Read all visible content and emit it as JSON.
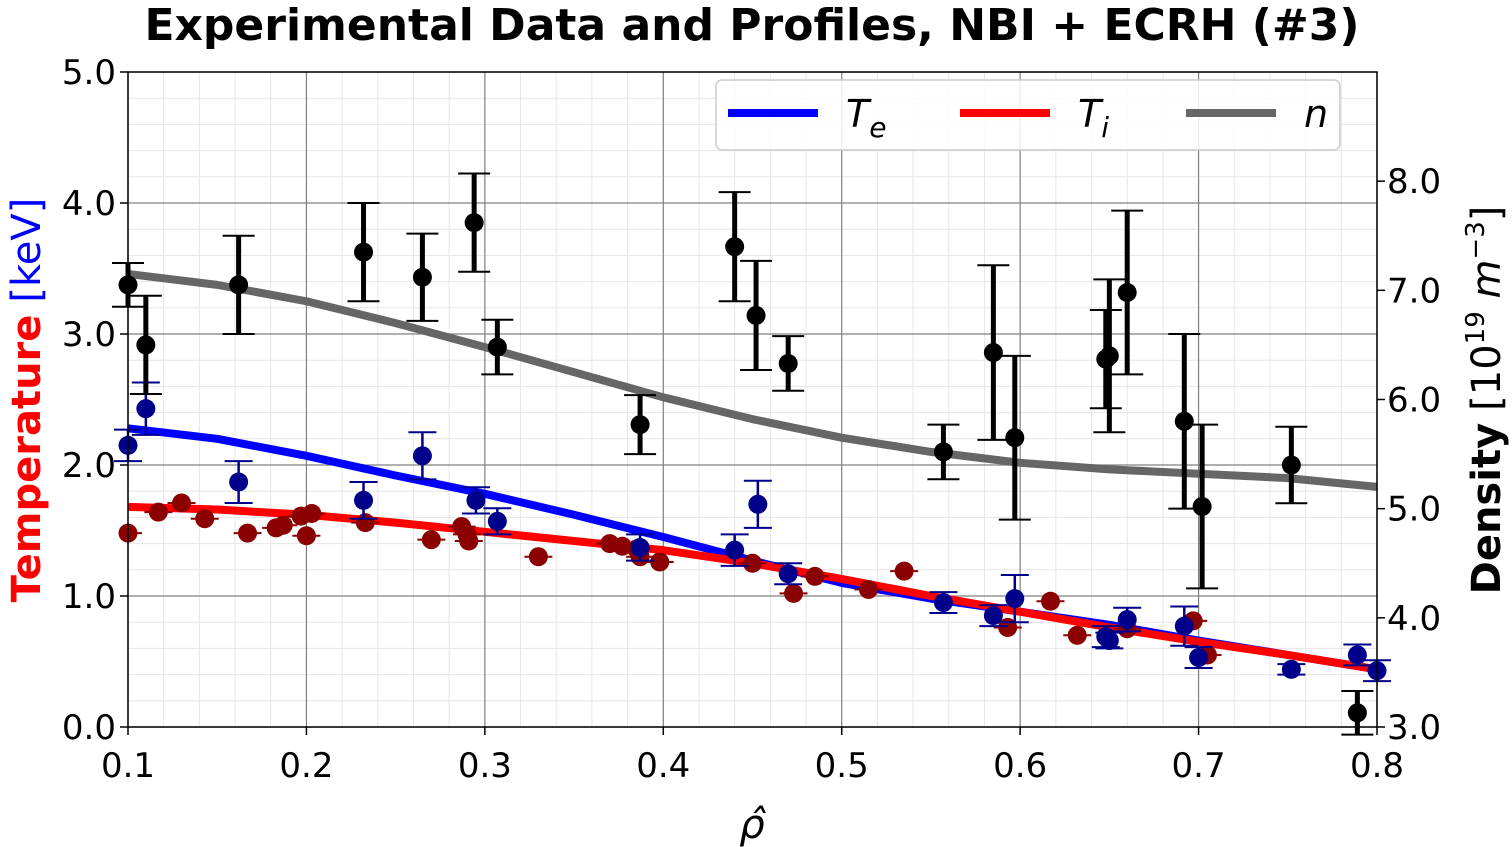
{
  "chart_data": {
    "type": "scatter",
    "title": "Experimental Data and Profiles, NBI + ECRH (#3)",
    "xlabel": "ρ̂",
    "ylabel_left": {
      "main": "Temperature",
      "unit": "[keV]"
    },
    "ylabel_right": {
      "main": "Density",
      "unit_prefix": "[10",
      "unit_exp": "19",
      "unit_mid": " m",
      "unit_exp2": "−3",
      "unit_suffix": "]"
    },
    "xlim": [
      0.1,
      0.8
    ],
    "ylim_left": [
      0.0,
      5.0
    ],
    "ylim_right": [
      3.0,
      9.0
    ],
    "x_ticks": [
      "0.1",
      "0.2",
      "0.3",
      "0.4",
      "0.5",
      "0.6",
      "0.7",
      "0.8"
    ],
    "y_left_ticks": [
      "0.0",
      "1.0",
      "2.0",
      "3.0",
      "4.0",
      "5.0"
    ],
    "y_right_ticks": [
      "3.0",
      "4.0",
      "5.0",
      "6.0",
      "7.0",
      "8.0"
    ],
    "grid": true,
    "legend_position": "top-right",
    "colors": {
      "Te": "#0000ff",
      "Ti": "#ff0000",
      "n": "#666666",
      "Te_points": "#00008b",
      "Ti_points": "#8b0000",
      "n_points": "#000000",
      "left_axis_main": "#ff0000",
      "left_axis_unit": "#0000ff"
    },
    "series": [
      {
        "name": "T_e",
        "kind": "profile",
        "axis": "left",
        "x": [
          0.1,
          0.15,
          0.2,
          0.25,
          0.3,
          0.35,
          0.4,
          0.45,
          0.5,
          0.55,
          0.6,
          0.65,
          0.7,
          0.75,
          0.8
        ],
        "y": [
          2.28,
          2.2,
          2.07,
          1.92,
          1.78,
          1.62,
          1.45,
          1.27,
          1.1,
          0.98,
          0.88,
          0.78,
          0.66,
          0.55,
          0.44
        ]
      },
      {
        "name": "T_i",
        "kind": "profile",
        "axis": "left",
        "x": [
          0.1,
          0.15,
          0.2,
          0.25,
          0.3,
          0.35,
          0.4,
          0.45,
          0.5,
          0.55,
          0.6,
          0.65,
          0.7,
          0.75,
          0.8
        ],
        "y": [
          1.68,
          1.66,
          1.62,
          1.56,
          1.49,
          1.42,
          1.35,
          1.25,
          1.13,
          1.0,
          0.88,
          0.76,
          0.65,
          0.55,
          0.44
        ]
      },
      {
        "name": "n",
        "kind": "profile",
        "axis": "right",
        "x": [
          0.1,
          0.15,
          0.2,
          0.25,
          0.3,
          0.35,
          0.4,
          0.45,
          0.5,
          0.55,
          0.6,
          0.65,
          0.7,
          0.75,
          0.8
        ],
        "y": [
          7.15,
          7.05,
          6.9,
          6.7,
          6.48,
          6.25,
          6.02,
          5.82,
          5.65,
          5.52,
          5.42,
          5.36,
          5.32,
          5.28,
          5.2
        ]
      }
    ],
    "measurements": {
      "Te": [
        {
          "x": 0.1,
          "y": 2.15,
          "err": 0.12
        },
        {
          "x": 0.11,
          "y": 2.43,
          "err": 0.2
        },
        {
          "x": 0.162,
          "y": 1.87,
          "err": 0.16
        },
        {
          "x": 0.232,
          "y": 1.73,
          "err": 0.14
        },
        {
          "x": 0.265,
          "y": 2.07,
          "err": 0.18
        },
        {
          "x": 0.295,
          "y": 1.73,
          "err": 0.1
        },
        {
          "x": 0.307,
          "y": 1.57,
          "err": 0.1
        },
        {
          "x": 0.387,
          "y": 1.37,
          "err": 0.1
        },
        {
          "x": 0.44,
          "y": 1.35,
          "err": 0.12
        },
        {
          "x": 0.453,
          "y": 1.7,
          "err": 0.18
        },
        {
          "x": 0.47,
          "y": 1.17,
          "err": 0.08
        },
        {
          "x": 0.557,
          "y": 0.95,
          "err": 0.08
        },
        {
          "x": 0.585,
          "y": 0.85,
          "err": 0.08
        },
        {
          "x": 0.597,
          "y": 0.98,
          "err": 0.18
        },
        {
          "x": 0.648,
          "y": 0.69,
          "err": 0.08
        },
        {
          "x": 0.65,
          "y": 0.66,
          "err": 0.06
        },
        {
          "x": 0.66,
          "y": 0.82,
          "err": 0.09
        },
        {
          "x": 0.692,
          "y": 0.77,
          "err": 0.15
        },
        {
          "x": 0.7,
          "y": 0.53,
          "err": 0.08
        },
        {
          "x": 0.752,
          "y": 0.44,
          "err": 0.04
        },
        {
          "x": 0.789,
          "y": 0.55,
          "err": 0.08
        },
        {
          "x": 0.8,
          "y": 0.43,
          "err": 0.08
        }
      ],
      "Ti": [
        {
          "x": 0.1,
          "y": 1.48
        },
        {
          "x": 0.117,
          "y": 1.64
        },
        {
          "x": 0.13,
          "y": 1.71
        },
        {
          "x": 0.143,
          "y": 1.59
        },
        {
          "x": 0.167,
          "y": 1.48
        },
        {
          "x": 0.183,
          "y": 1.52
        },
        {
          "x": 0.187,
          "y": 1.54
        },
        {
          "x": 0.197,
          "y": 1.61
        },
        {
          "x": 0.2,
          "y": 1.46
        },
        {
          "x": 0.203,
          "y": 1.63
        },
        {
          "x": 0.233,
          "y": 1.56
        },
        {
          "x": 0.27,
          "y": 1.43
        },
        {
          "x": 0.287,
          "y": 1.53
        },
        {
          "x": 0.29,
          "y": 1.47
        },
        {
          "x": 0.291,
          "y": 1.42
        },
        {
          "x": 0.33,
          "y": 1.3
        },
        {
          "x": 0.37,
          "y": 1.4
        },
        {
          "x": 0.377,
          "y": 1.38
        },
        {
          "x": 0.385,
          "y": 1.36
        },
        {
          "x": 0.387,
          "y": 1.3
        },
        {
          "x": 0.398,
          "y": 1.26
        },
        {
          "x": 0.45,
          "y": 1.25
        },
        {
          "x": 0.473,
          "y": 1.02
        },
        {
          "x": 0.485,
          "y": 1.15
        },
        {
          "x": 0.515,
          "y": 1.05
        },
        {
          "x": 0.535,
          "y": 1.19
        },
        {
          "x": 0.593,
          "y": 0.76
        },
        {
          "x": 0.617,
          "y": 0.96
        },
        {
          "x": 0.632,
          "y": 0.7
        },
        {
          "x": 0.66,
          "y": 0.75
        },
        {
          "x": 0.697,
          "y": 0.81
        },
        {
          "x": 0.705,
          "y": 0.55
        }
      ],
      "n": [
        {
          "x": 0.1,
          "y": 7.05,
          "err": 0.2
        },
        {
          "x": 0.11,
          "y": 6.5,
          "err": 0.45
        },
        {
          "x": 0.162,
          "y": 7.05,
          "err": 0.45
        },
        {
          "x": 0.232,
          "y": 7.35,
          "err": 0.45
        },
        {
          "x": 0.265,
          "y": 7.12,
          "err": 0.4
        },
        {
          "x": 0.294,
          "y": 7.62,
          "err": 0.45
        },
        {
          "x": 0.307,
          "y": 6.48,
          "err": 0.25
        },
        {
          "x": 0.387,
          "y": 5.77,
          "err": 0.27
        },
        {
          "x": 0.44,
          "y": 7.4,
          "err": 0.5
        },
        {
          "x": 0.452,
          "y": 6.77,
          "err": 0.5
        },
        {
          "x": 0.47,
          "y": 6.33,
          "err": 0.25
        },
        {
          "x": 0.557,
          "y": 5.52,
          "err": 0.25
        },
        {
          "x": 0.585,
          "y": 6.43,
          "err": 0.8
        },
        {
          "x": 0.597,
          "y": 5.65,
          "err": 0.75
        },
        {
          "x": 0.648,
          "y": 6.37,
          "err": 0.45
        },
        {
          "x": 0.65,
          "y": 6.4,
          "err": 0.7
        },
        {
          "x": 0.66,
          "y": 6.98,
          "err": 0.75
        },
        {
          "x": 0.692,
          "y": 5.8,
          "err": 0.8
        },
        {
          "x": 0.702,
          "y": 5.02,
          "err": 0.75
        },
        {
          "x": 0.752,
          "y": 5.4,
          "err": 0.35
        },
        {
          "x": 0.789,
          "y": 3.13,
          "err": 0.2
        }
      ]
    },
    "legend": [
      {
        "base": "T",
        "sub": "e",
        "color_key": "Te"
      },
      {
        "base": "T",
        "sub": "i",
        "color_key": "Ti"
      },
      {
        "base": "n",
        "sub": "",
        "color_key": "n"
      }
    ]
  }
}
